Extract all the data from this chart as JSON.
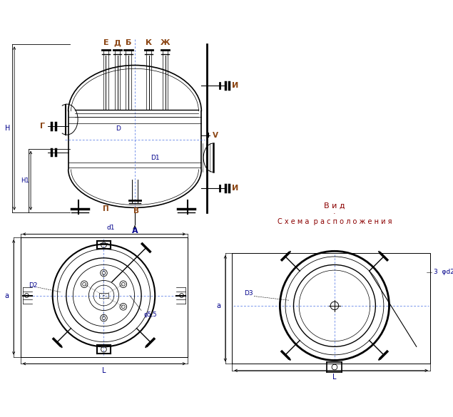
{
  "bg_color": "#ffffff",
  "line_color": "#000000",
  "label_color": "#8B4513",
  "dim_color": "#00008B",
  "text_vid": "В и д",
  "text_schema": "С х е м а  р а с п о л о ж е н и я",
  "labels_top": [
    "Е",
    "Д",
    "Б",
    "К",
    "Ж"
  ],
  "label_И": "И",
  "label_Г": "Г",
  "label_В": "В",
  "label_П": "П",
  "label_Н1": "Н1",
  "label_Н": "Н",
  "label_А": "А",
  "label_V": "V",
  "label_D": "D",
  "label_D1": "D1",
  "label_d1": "d1",
  "label_D2": "D2",
  "label_D3": "D3",
  "label_L": "L",
  "label_a": "a",
  "label_d3s": "φ5,5",
  "label_3phi2": "3  φd2"
}
